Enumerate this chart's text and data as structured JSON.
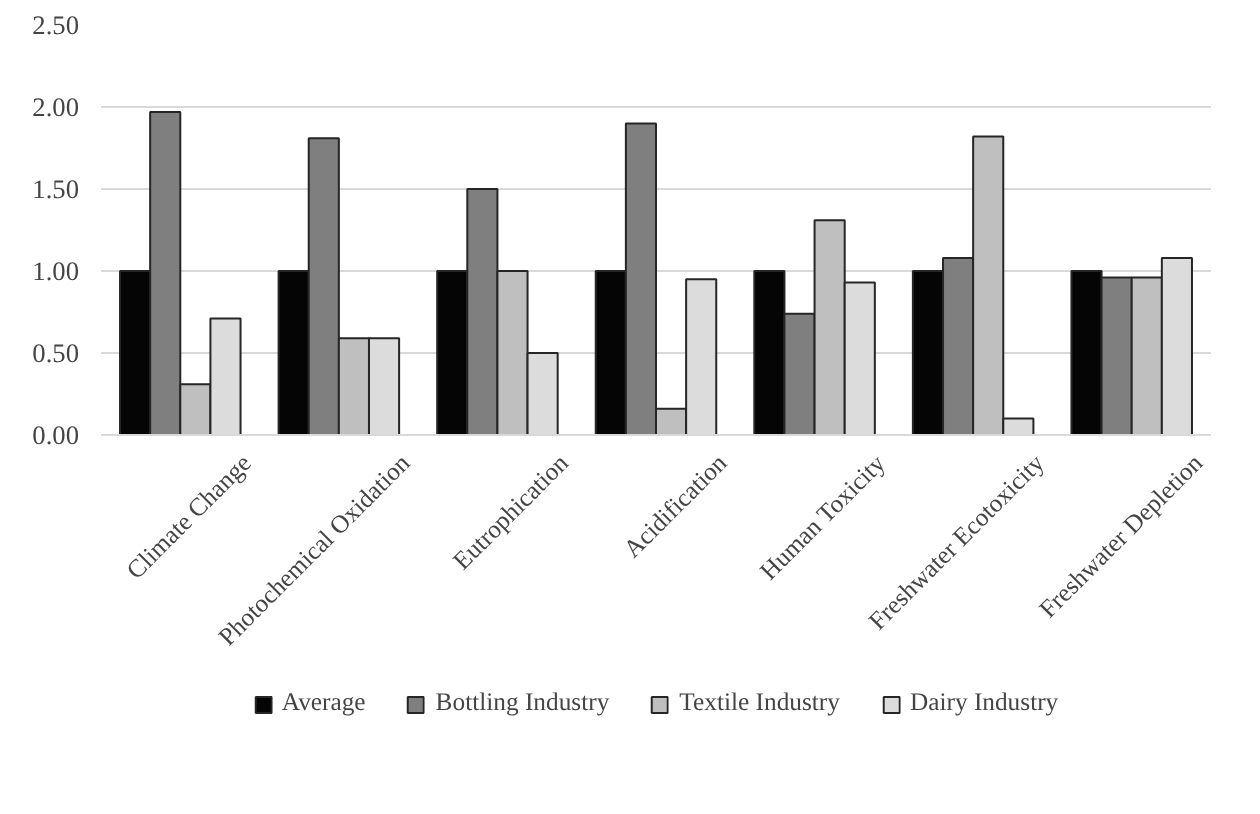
{
  "chart_data": {
    "type": "bar",
    "categories": [
      "Climate Change",
      "Photochemical Oxidation",
      "Eutrophication",
      "Acidification",
      "Human Toxicity",
      "Freshwater Ecotoxicity",
      "Freshwater Depletion"
    ],
    "series": [
      {
        "name": "Average",
        "color": "#050505",
        "values": [
          1.0,
          1.0,
          1.0,
          1.0,
          1.0,
          1.0,
          1.0
        ]
      },
      {
        "name": "Bottling Industry",
        "color": "#7f7f7f",
        "values": [
          1.97,
          1.81,
          1.5,
          1.9,
          0.74,
          1.08,
          0.96
        ]
      },
      {
        "name": "Textile Industry",
        "color": "#bfbfbf",
        "values": [
          0.31,
          0.59,
          1.0,
          0.16,
          1.31,
          1.82,
          0.96
        ]
      },
      {
        "name": "Dairy Industry",
        "color": "#dcdcdc",
        "values": [
          0.71,
          0.59,
          0.5,
          0.95,
          0.93,
          0.1,
          1.08
        ]
      }
    ],
    "ylim": [
      0,
      2.5
    ],
    "yticks": [
      {
        "value": 0,
        "label": "0.00"
      },
      {
        "value": 0.5,
        "label": "0.50"
      },
      {
        "value": 1,
        "label": "1.00"
      },
      {
        "value": 1.5,
        "label": "1.50"
      },
      {
        "value": 2,
        "label": "2.00"
      },
      {
        "value": 2.5,
        "label": "2.50"
      }
    ],
    "grid": "y",
    "legend": "bottom"
  }
}
